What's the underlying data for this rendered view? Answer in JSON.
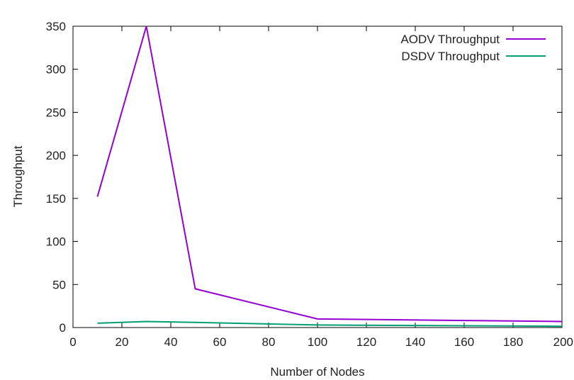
{
  "chart_data": {
    "type": "line",
    "title": "",
    "xlabel": "Number of Nodes",
    "ylabel": "Throughput",
    "xlim": [
      0,
      200
    ],
    "ylim": [
      0,
      350
    ],
    "xticks": [
      "0",
      "20",
      "40",
      "60",
      "80",
      "100",
      "120",
      "140",
      "160",
      "180",
      "200"
    ],
    "yticks": [
      "0",
      "50",
      "100",
      "150",
      "200",
      "250",
      "300",
      "350"
    ],
    "grid": false,
    "legend_position": "top-right",
    "series": [
      {
        "name": "AODV Throughput",
        "color": "#9400d3",
        "x": [
          10,
          30,
          50,
          100,
          200
        ],
        "y": [
          152,
          350,
          45,
          10,
          7
        ]
      },
      {
        "name": "DSDV Throughput",
        "color": "#009e73",
        "x": [
          10,
          30,
          50,
          100,
          200
        ],
        "y": [
          5,
          7,
          6,
          3,
          1.5
        ]
      }
    ]
  }
}
